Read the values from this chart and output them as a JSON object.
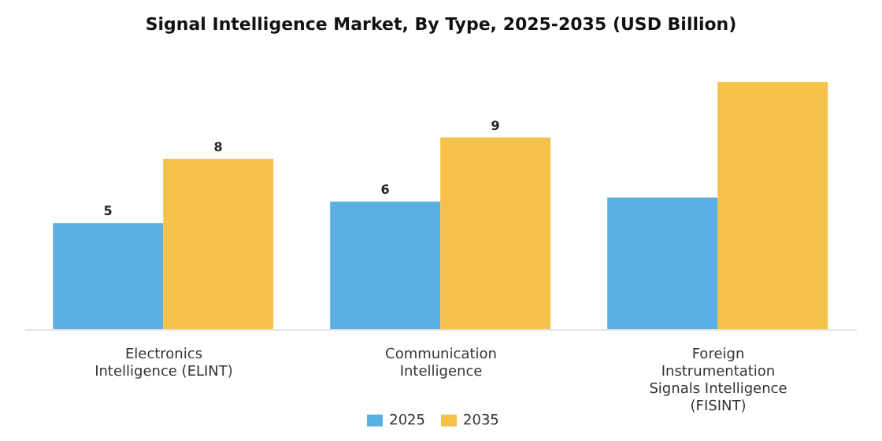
{
  "chart_data": {
    "type": "bar",
    "title": "Signal Intelligence Market, By Type, 2025-2035 (USD Billion)",
    "categories": [
      "Electronics Intelligence (ELINT)",
      "Communication Intelligence",
      "Foreign Instrumentation Signals Intelligence (FISINT)"
    ],
    "series": [
      {
        "name": "2025",
        "color": "#5aafe3",
        "values": [
          5,
          6,
          6.2
        ],
        "value_labels": [
          "5",
          "6",
          null
        ]
      },
      {
        "name": "2035",
        "color": "#f6c14b",
        "values": [
          8,
          9,
          11.6
        ],
        "value_labels": [
          "8",
          "9",
          null
        ]
      }
    ],
    "tick_labels": "x",
    "legend": "bottom",
    "grid": false
  }
}
